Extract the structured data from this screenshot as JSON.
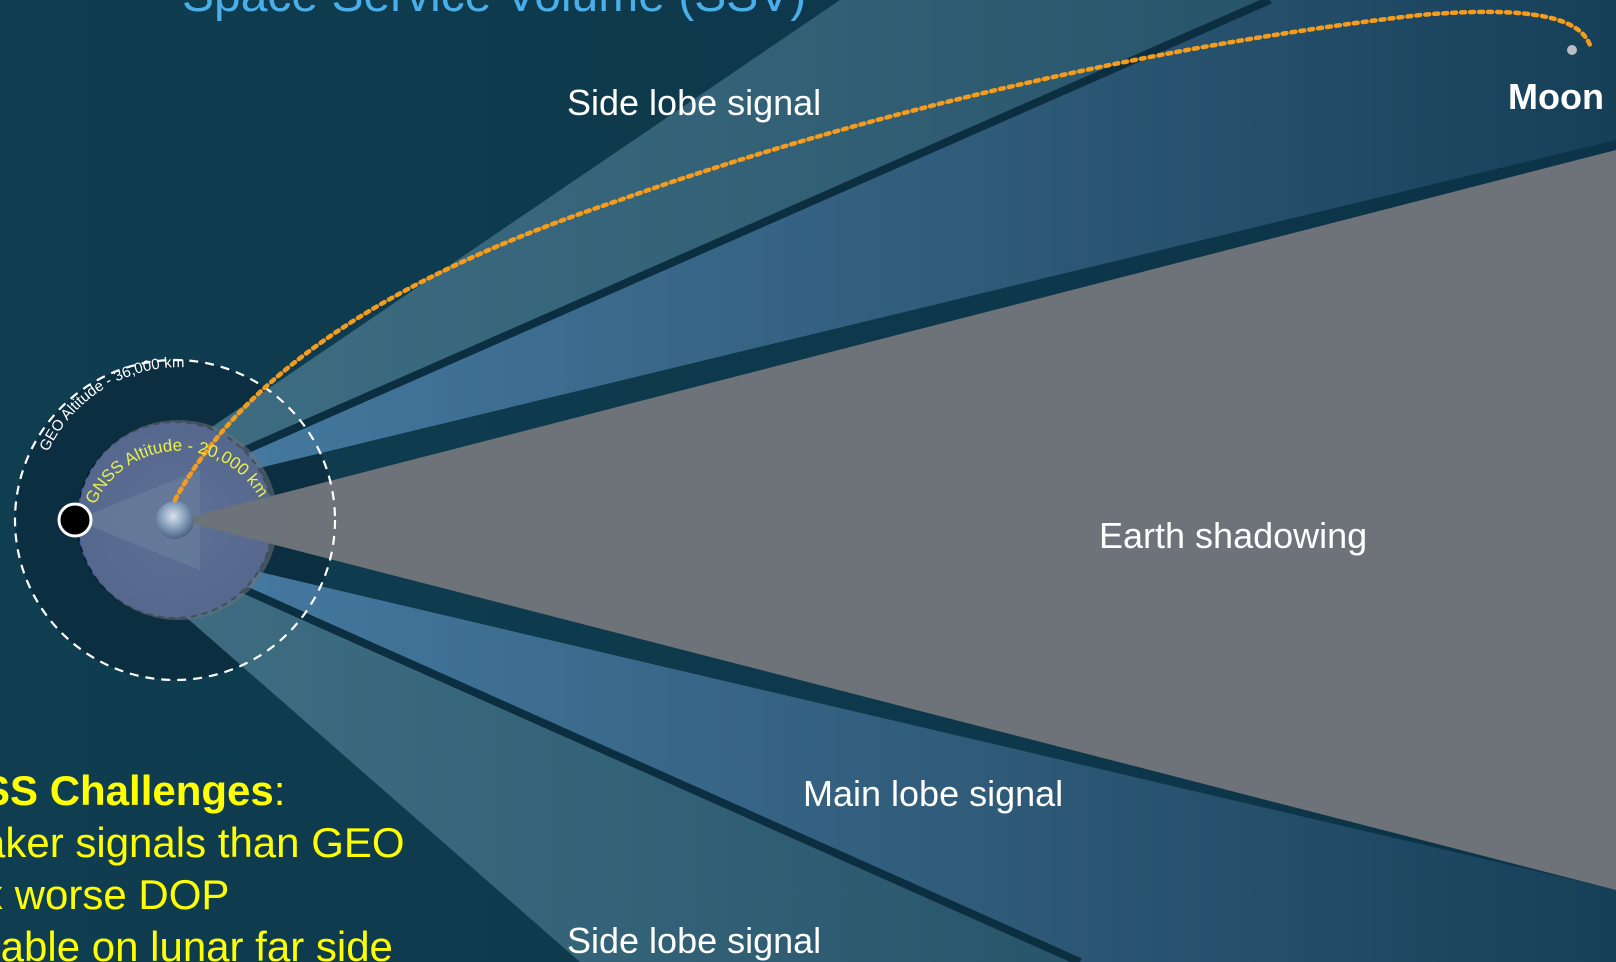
{
  "title": "Space Service Volume (SSV)",
  "labels": {
    "side_lobe_top": "Side lobe signal",
    "side_lobe_bottom": "Side lobe signal",
    "main_lobe": "Main lobe signal",
    "earth_shadowing": "Earth shadowing",
    "moon": "Moon",
    "geo_altitude": "GEO Altitude - 36,000 km",
    "gnss_altitude": "GNSS Altitude - 20,000 km"
  },
  "challenges": {
    "heading": "SS Challenges",
    "heading_suffix": ":",
    "items": [
      "aker signals than GEO",
      "x worse DOP",
      "ilable on lunar far side"
    ]
  },
  "colors": {
    "background": "#0f3a4c",
    "title": "#4aaee8",
    "trajectory": "#f39c1e",
    "challenges_text": "#ffff00",
    "gnss_label": "#e8f04a",
    "earth_shadow": "#6e737a",
    "main_lobe": "#3f6b90",
    "side_lobe": "#3c6a84"
  }
}
